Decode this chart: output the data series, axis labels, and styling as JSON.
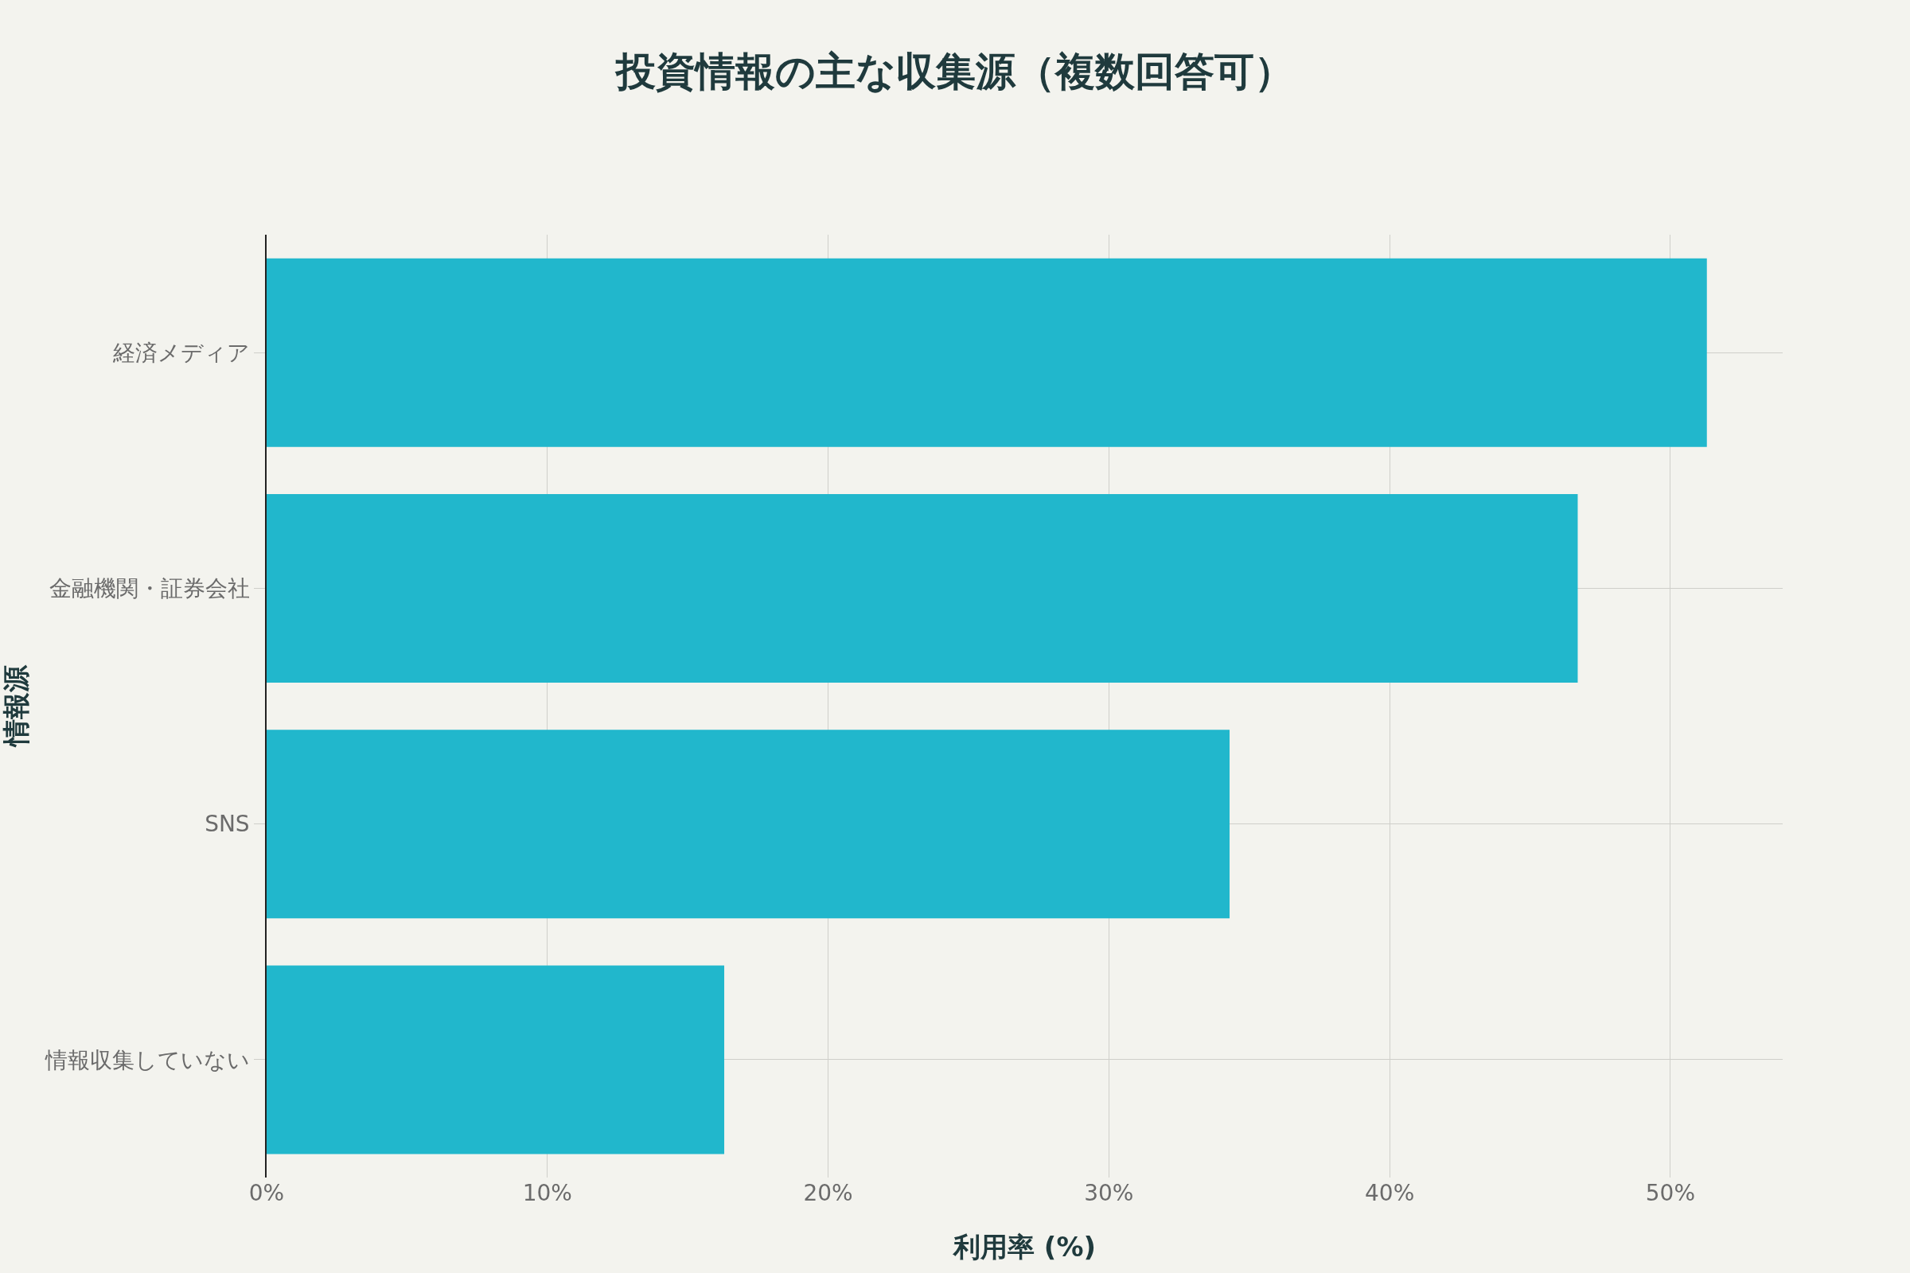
{
  "chart_data": {
    "type": "bar",
    "orientation": "horizontal",
    "title": "投資情報の主な収集源（複数回答可）",
    "xlabel": "利用率 (%)",
    "ylabel": "情報源",
    "categories": [
      "経済メディア",
      "金融機関・証券会社",
      "SNS",
      "情報収集していない"
    ],
    "values": [
      51.3,
      46.7,
      34.3,
      16.3
    ],
    "color": "#21b7cc",
    "xlim": [
      0,
      54
    ],
    "xticks": [
      {
        "value": 0,
        "label": "0%"
      },
      {
        "value": 10,
        "label": "10%"
      },
      {
        "value": 20,
        "label": "20%"
      },
      {
        "value": 30,
        "label": "30%"
      },
      {
        "value": 40,
        "label": "40%"
      },
      {
        "value": 50,
        "label": "50%"
      }
    ],
    "grid": true
  }
}
